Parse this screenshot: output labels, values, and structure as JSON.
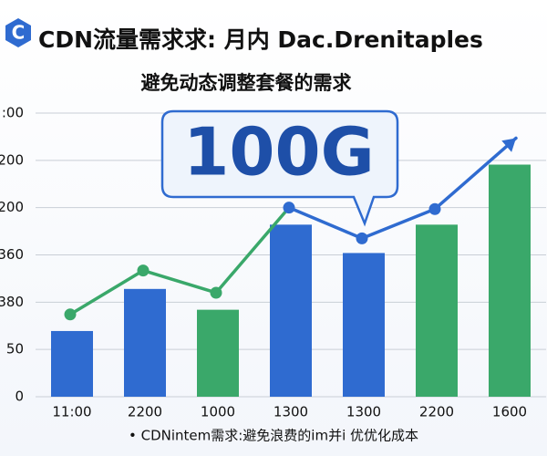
{
  "chart_data": {
    "type": "bar-line",
    "title": "CDN流量需求求: 月内 Dac.Drenitaples",
    "subtitle": "避免动态调整套餐的需求",
    "callout": "100G",
    "footer": "• CDNintem需求:避免浪费的im并i 优优化成本",
    "categories": [
      "11:00",
      "2200",
      "1000",
      "1300",
      "1300",
      "2200",
      "1600"
    ],
    "values": [
      1.39,
      2.28,
      1.84,
      3.64,
      3.04,
      3.64,
      4.91
    ],
    "colors": [
      "#2f6bd0",
      "#2f6bd0",
      "#3aa86a",
      "#2f6bd0",
      "#2f6bd0",
      "#3aa86a",
      "#3aa86a"
    ],
    "line": {
      "values": [
        1.74,
        2.67,
        2.2,
        4.0,
        3.35,
        3.97,
        5.47
      ],
      "colors": [
        "#3aa86a",
        "#3aa86a",
        "#3aa86a",
        "#2f6bd0",
        "#2f6bd0",
        "#2f6bd0",
        "#2f6bd0"
      ]
    },
    "ylim": [
      0,
      6
    ],
    "yticks": [
      {
        "value": 0,
        "label": "0"
      },
      {
        "value": 1,
        "label": "50"
      },
      {
        "value": 2,
        "label": "380"
      },
      {
        "value": 3,
        "label": "360"
      },
      {
        "value": 4,
        "label": "200"
      },
      {
        "value": 5,
        "label": "200"
      },
      {
        "value": 6,
        "label": ":00"
      }
    ],
    "grid": true
  }
}
